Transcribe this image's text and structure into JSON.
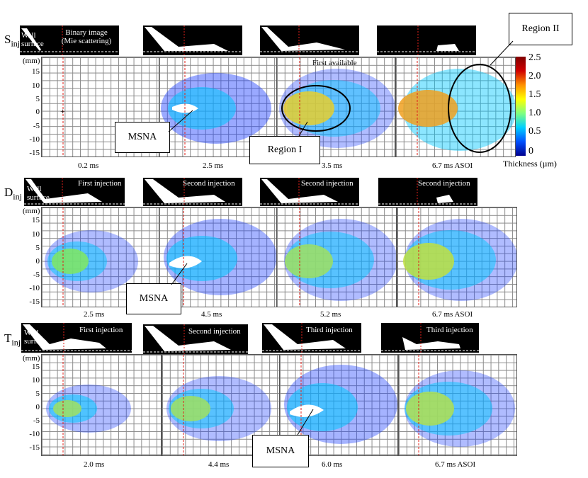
{
  "rows": [
    {
      "label_main": "S",
      "label_sub": "inj",
      "annotations": {
        "wall": "Wall\nsurface",
        "binary": "Binary image\n(Mie scattering)",
        "first_available": "First available"
      },
      "captions": [
        "0.2 ms",
        "2.5 ms",
        "3.5 ms",
        "6.7 ms ASOI"
      ],
      "callouts": [
        "MSNA",
        "Region I",
        "Region II"
      ]
    },
    {
      "label_main": "D",
      "label_sub": "inj",
      "annotations": {
        "wall": "Wall\nsurface",
        "injections": [
          "First injection",
          "Second injection",
          "Second injection",
          "Second injection"
        ]
      },
      "captions": [
        "2.5 ms",
        "4.5 ms",
        "5.2 ms",
        "6.7 ms ASOI"
      ],
      "callouts": [
        "MSNA"
      ]
    },
    {
      "label_main": "T",
      "label_sub": "inj",
      "annotations": {
        "wall": "Wall\nsurface",
        "injections": [
          "First injection",
          "Second injection",
          "Third injection",
          "Third injection"
        ]
      },
      "captions": [
        "2.0 ms",
        "4.4 ms",
        "6.0 ms",
        "6.7 ms ASOI"
      ],
      "callouts": [
        "MSNA"
      ]
    }
  ],
  "axis": {
    "unit": "(mm)",
    "ticks": [
      "15",
      "10",
      "5",
      "0",
      "-5",
      "-10",
      "-15"
    ]
  },
  "colorbar": {
    "ticks": [
      "2.5",
      "2.0",
      "1.5",
      "1.0",
      "0.5",
      "0"
    ],
    "label": "Thickness (µm)",
    "colors": [
      "#00008f",
      "#0050ff",
      "#00d0ff",
      "#7fff7f",
      "#ffff00",
      "#ff9000",
      "#d00000",
      "#800000"
    ]
  },
  "colors": {
    "spray_low": "#1e40ff",
    "spray_mid": "#3ad0e0",
    "spray_high": "#f0d020",
    "injector_line": "#e0201a"
  }
}
